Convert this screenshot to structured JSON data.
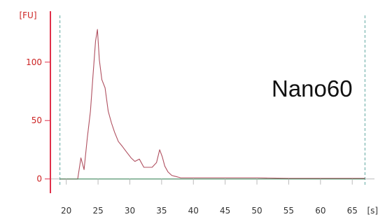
{
  "chart_data": {
    "type": "line",
    "ylabel": "[FU]",
    "xlabel": "[s]",
    "xlim": [
      17.5,
      68.5
    ],
    "ylim": [
      -5,
      140
    ],
    "x_ticks": [
      20,
      25,
      30,
      35,
      40,
      45,
      50,
      55,
      60,
      65
    ],
    "y_ticks": [
      0,
      50,
      100
    ],
    "reference_lines_x": [
      19,
      67
    ],
    "annotation": "Nano60",
    "grid": false,
    "colors": {
      "trace": "#b05060",
      "baseline": "#3a8a5a",
      "axis": "#e0304a",
      "reference": "#5fa8a0"
    },
    "series": [
      {
        "x": [
          19,
          21.8,
          22.3,
          22.8,
          23.3,
          23.8,
          24.2,
          24.6,
          24.9,
          25.2,
          25.6,
          26.1,
          26.6,
          27.1,
          27.6,
          28.2,
          28.8,
          29.5,
          30.2,
          30.8,
          31.5,
          32.2,
          32.8,
          33.5,
          34.2,
          34.7,
          35.1,
          35.5,
          36,
          36.6,
          37.3,
          38,
          40,
          45,
          50,
          55,
          60,
          67
        ],
        "values": [
          0,
          0,
          18,
          8,
          35,
          58,
          88,
          118,
          128,
          102,
          85,
          78,
          58,
          48,
          40,
          32,
          28,
          23,
          18,
          15,
          17,
          10,
          10,
          10,
          14,
          25,
          19,
          11,
          6,
          3,
          2,
          1,
          1,
          1,
          1,
          0.5,
          0.5,
          0.5
        ]
      },
      {
        "x": [
          19,
          67
        ],
        "values": [
          0,
          0
        ]
      }
    ]
  }
}
